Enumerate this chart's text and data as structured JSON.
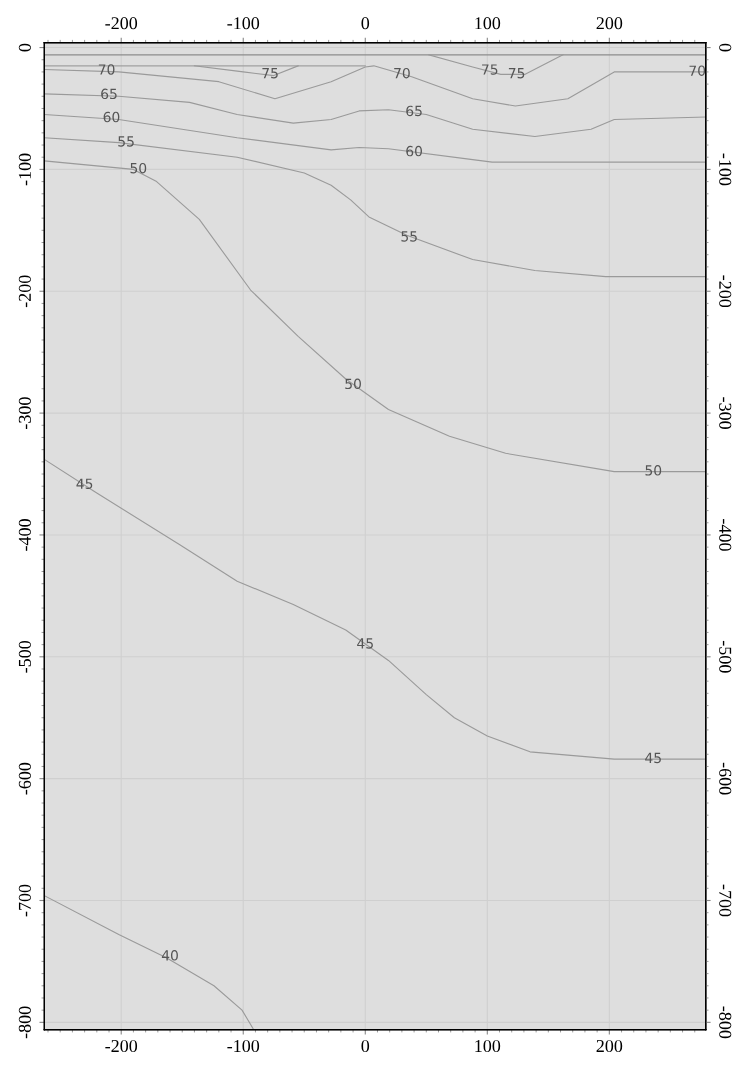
{
  "chart_data": {
    "type": "line",
    "xlim": [
      -263,
      279
    ],
    "xticks": [
      -200,
      -100,
      0,
      100,
      200
    ],
    "x2lim": [
      -263,
      279
    ],
    "x2ticks": [
      -200,
      -100,
      0,
      100,
      200
    ],
    "ylim": [
      -806,
      4
    ],
    "yticks": [
      0,
      -100,
      -200,
      -300,
      -400,
      -500,
      -600,
      -700,
      -800
    ],
    "y2lim": [
      -806,
      4
    ],
    "y2ticks": [
      0,
      -100,
      -200,
      -300,
      -400,
      -500,
      -600,
      -700,
      -800
    ],
    "grid": true,
    "marker": "none",
    "line_style": "solid",
    "series": [
      {
        "color": "#8c8c8c",
        "x": [
          -263,
          279
        ],
        "values": [
          -6,
          -6
        ]
      },
      {
        "color": "#a0a0a0",
        "x": [
          -263,
          0
        ],
        "values": [
          -15,
          -15
        ]
      },
      {
        "color": "#9a9a9a",
        "x": [
          -140,
          -100,
          -75,
          -55
        ],
        "values": [
          -15,
          -20,
          -23,
          -15
        ]
      },
      {
        "color": "#9a9a9a",
        "x": [
          52,
          88,
          111,
          131,
          162
        ],
        "values": [
          -6,
          -16,
          -22,
          -22,
          -6
        ]
      },
      {
        "color": "#9a9a9a",
        "x": [
          -263,
          -202,
          -120,
          -74,
          -28,
          0,
          7,
          38,
          88,
          123,
          166,
          204,
          216,
          279
        ],
        "values": [
          -18,
          -20,
          -28,
          -42,
          -28,
          -16,
          -15,
          -24,
          -42,
          -48,
          -42,
          -20,
          -20,
          -20
        ]
      },
      {
        "color": "#9a9a9a",
        "x": [
          -263,
          -202,
          -144,
          -105,
          -59,
          -28,
          -5,
          19,
          50,
          88,
          139,
          185,
          204,
          279
        ],
        "values": [
          -38,
          -40,
          -45,
          -55,
          -62,
          -59,
          -52,
          -51,
          -55,
          -67,
          -73,
          -67,
          -59,
          -57
        ]
      },
      {
        "color": "#9a9a9a",
        "x": [
          -263,
          -202,
          -105,
          -28,
          -5,
          19,
          88,
          104,
          204,
          279
        ],
        "values": [
          -55,
          -59,
          -74,
          -84,
          -82,
          -83,
          -92,
          -94,
          -94,
          -94
        ]
      },
      {
        "color": "#9a9a9a",
        "x": [
          -263,
          -202,
          -105,
          -50,
          -28,
          -12,
          3,
          34,
          88,
          139,
          197,
          279
        ],
        "values": [
          -74,
          -78,
          -90,
          -103,
          -113,
          -125,
          -139,
          -154,
          -174,
          -183,
          -188,
          -188
        ]
      },
      {
        "color": "#9a9a9a",
        "x": [
          -263,
          -190,
          -171,
          -136,
          -94,
          -55,
          -16,
          19,
          69,
          115,
          204,
          279
        ],
        "values": [
          -93,
          -100,
          -110,
          -141,
          -199,
          -237,
          -272,
          -297,
          -319,
          -333,
          -348,
          -348
        ]
      },
      {
        "color": "#9a9a9a",
        "x": [
          -263,
          -221,
          -152,
          -105,
          -59,
          -16,
          19,
          50,
          73,
          100,
          135,
          204,
          279
        ],
        "values": [
          -338,
          -365,
          -408,
          -438,
          -457,
          -478,
          -503,
          -531,
          -550,
          -565,
          -578,
          -584,
          -584
        ]
      },
      {
        "color": "#9a9a9a",
        "x": [
          -263,
          -202,
          -163,
          -124,
          -101,
          -92
        ],
        "values": [
          -696,
          -728,
          -747,
          -770,
          -790,
          -805
        ]
      }
    ],
    "annotations": [
      {
        "text": "70",
        "x": -212,
        "y": -19
      },
      {
        "text": "70",
        "x": 30,
        "y": -22
      },
      {
        "text": "70",
        "x": 272,
        "y": -20
      },
      {
        "text": "75",
        "x": -78,
        "y": -22
      },
      {
        "text": "75",
        "x": 102,
        "y": -19
      },
      {
        "text": "75",
        "x": 124,
        "y": -22
      },
      {
        "text": "65",
        "x": -210,
        "y": -39
      },
      {
        "text": "65",
        "x": 40,
        "y": -53
      },
      {
        "text": "60",
        "x": -208,
        "y": -58
      },
      {
        "text": "60",
        "x": 40,
        "y": -86
      },
      {
        "text": "55",
        "x": -196,
        "y": -78
      },
      {
        "text": "55",
        "x": 36,
        "y": -156
      },
      {
        "text": "50",
        "x": -186,
        "y": -100
      },
      {
        "text": "50",
        "x": -10,
        "y": -277
      },
      {
        "text": "50",
        "x": 236,
        "y": -348
      },
      {
        "text": "45",
        "x": -230,
        "y": -359
      },
      {
        "text": "45",
        "x": 0,
        "y": -490
      },
      {
        "text": "45",
        "x": 236,
        "y": -584
      },
      {
        "text": "40",
        "x": -160,
        "y": -746
      }
    ]
  }
}
